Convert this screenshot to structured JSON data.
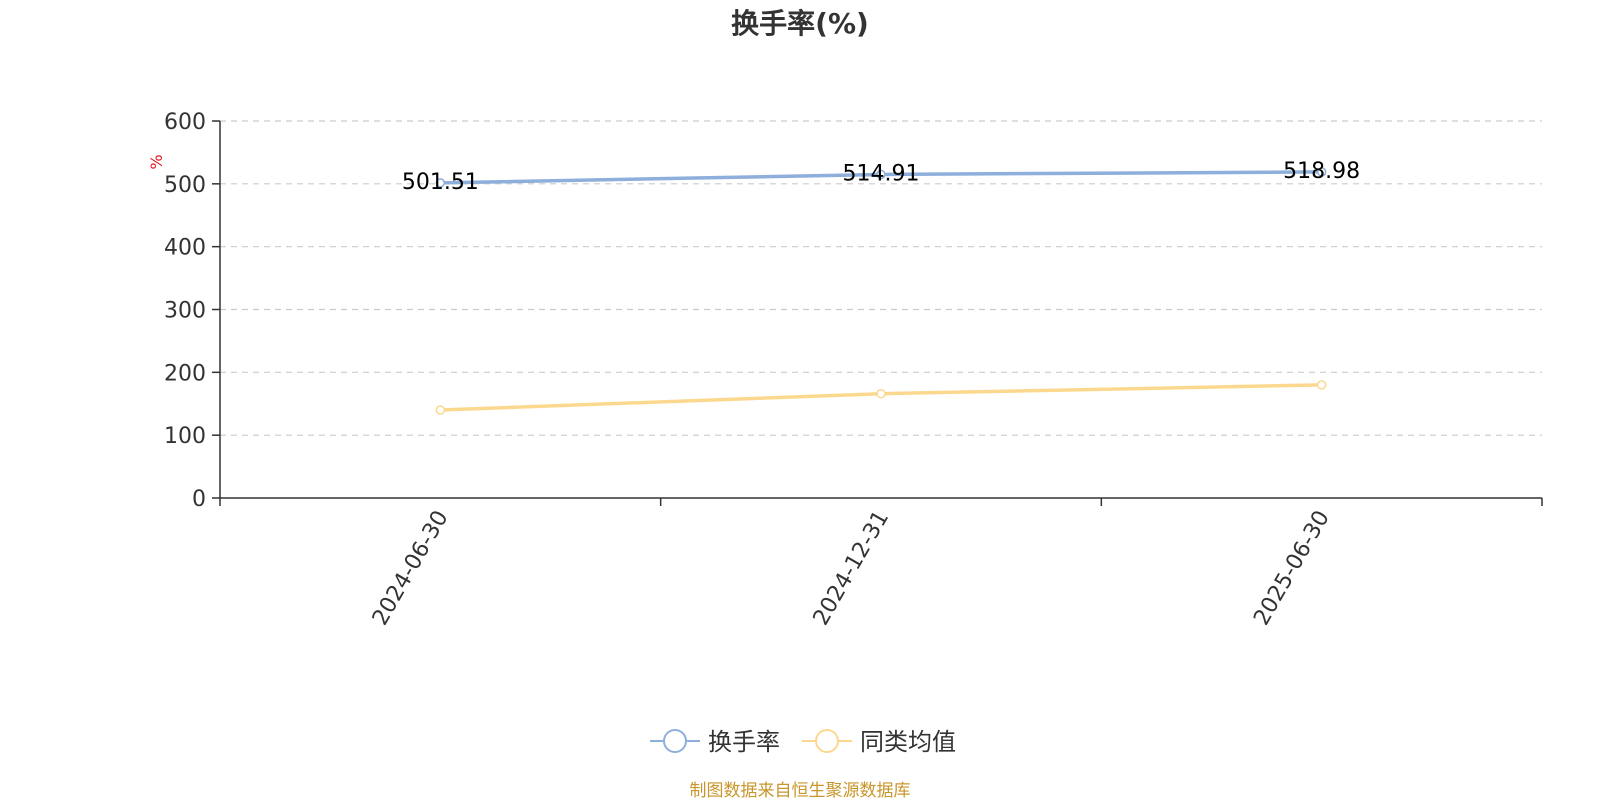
{
  "chart_data": {
    "type": "line",
    "title": "换手率(%)",
    "xlabel": "",
    "ylabel": "%",
    "categories": [
      "2024-06-30",
      "2024-12-31",
      "2025-06-30"
    ],
    "ylim": [
      0,
      600
    ],
    "yticks": [
      0,
      100,
      200,
      300,
      400,
      500,
      600
    ],
    "grid": true,
    "legend_position": "bottom-center",
    "series": [
      {
        "name": "换手率",
        "values": [
          501.51,
          514.91,
          518.98
        ],
        "data_labels": [
          "501.51",
          "514.91",
          "518.98"
        ],
        "color": "#8eaedb",
        "show_labels": true
      },
      {
        "name": "同类均值",
        "values": [
          140,
          166,
          180
        ],
        "color": "#fcd88f",
        "show_labels": false
      }
    ]
  },
  "colors": {
    "axis": "#333333",
    "grid": "#cccccc",
    "unit": "#e0191e",
    "source": "#c8962b"
  },
  "source_note": "制图数据来自恒生聚源数据库"
}
